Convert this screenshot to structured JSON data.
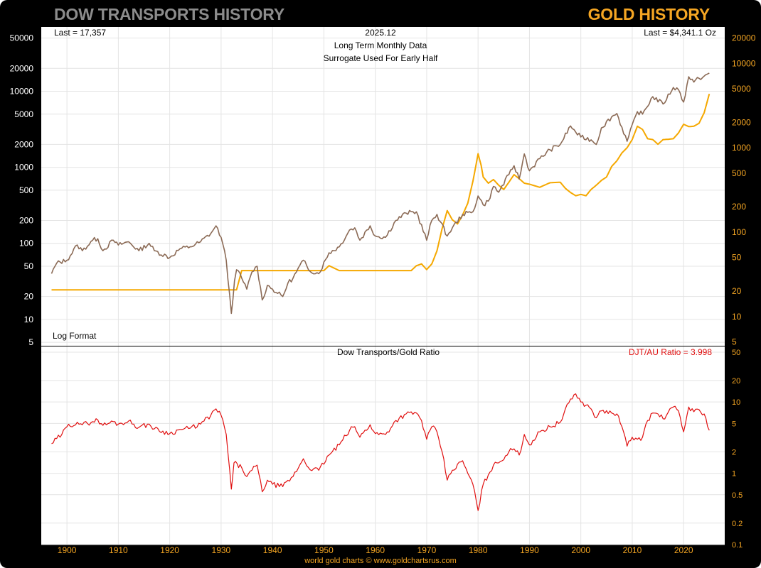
{
  "header": {
    "left_title": "DOW TRANSPORTS HISTORY",
    "right_title": "GOLD HISTORY"
  },
  "footer": {
    "credit": "world gold charts © www.goldchartsrus.com"
  },
  "colors": {
    "dow": "#8b6a55",
    "gold": "#f5a800",
    "ratio": "#e01010",
    "left_title": "#8c8c8c",
    "right_title": "#f5a623",
    "axis_label_right": "#f5a623"
  },
  "chart_data": [
    {
      "type": "line",
      "title": "2025.12",
      "subtitle": [
        "Long Term Monthly Data",
        "Surrogate Used For Early Half"
      ],
      "annotations": {
        "last_left": "Last = 17,357",
        "last_right": "Last = $4,341.1 Oz",
        "scale_note": "Log Format"
      },
      "scale": "log",
      "grid": true,
      "x_range": [
        1895,
        2028
      ],
      "y_left_range": [
        4.5,
        70000
      ],
      "y_left_ticks": [
        "50000",
        "20000",
        "10000",
        "5000",
        "2000",
        "1000",
        "500",
        "200",
        "100",
        "50",
        "20",
        "10",
        "5"
      ],
      "y_right_range": [
        4.5,
        27000
      ],
      "y_right_ticks": [
        "20000",
        "10000",
        "5000",
        "2000",
        "1000",
        "500",
        "200",
        "100",
        "50",
        "20",
        "10",
        "5"
      ],
      "series": [
        {
          "name": "Dow Transports",
          "axis": "left",
          "points": [
            [
              1897,
              40
            ],
            [
              1898,
              55
            ],
            [
              1900,
              60
            ],
            [
              1902,
              95
            ],
            [
              1903,
              80
            ],
            [
              1905,
              110
            ],
            [
              1906,
              115
            ],
            [
              1907,
              80
            ],
            [
              1909,
              110
            ],
            [
              1910,
              95
            ],
            [
              1912,
              105
            ],
            [
              1914,
              80
            ],
            [
              1916,
              100
            ],
            [
              1917,
              80
            ],
            [
              1920,
              65
            ],
            [
              1922,
              85
            ],
            [
              1924,
              90
            ],
            [
              1926,
              105
            ],
            [
              1928,
              135
            ],
            [
              1929,
              170
            ],
            [
              1930,
              120
            ],
            [
              1931,
              60
            ],
            [
              1932,
              12
            ],
            [
              1932.6,
              32
            ],
            [
              1933,
              45
            ],
            [
              1934,
              35
            ],
            [
              1935,
              25
            ],
            [
              1936,
              42
            ],
            [
              1937,
              50
            ],
            [
              1938,
              18
            ],
            [
              1939,
              28
            ],
            [
              1940,
              25
            ],
            [
              1941,
              22
            ],
            [
              1942,
              20
            ],
            [
              1943,
              30
            ],
            [
              1944,
              35
            ],
            [
              1946,
              60
            ],
            [
              1947,
              45
            ],
            [
              1949,
              40
            ],
            [
              1951,
              75
            ],
            [
              1953,
              90
            ],
            [
              1955,
              150
            ],
            [
              1956,
              160
            ],
            [
              1957,
              110
            ],
            [
              1959,
              170
            ],
            [
              1960,
              125
            ],
            [
              1962,
              120
            ],
            [
              1964,
              200
            ],
            [
              1966,
              250
            ],
            [
              1968,
              260
            ],
            [
              1970,
              110
            ],
            [
              1971,
              200
            ],
            [
              1972,
              240
            ],
            [
              1974,
              125
            ],
            [
              1975,
              160
            ],
            [
              1977,
              240
            ],
            [
              1979,
              260
            ],
            [
              1980,
              420
            ],
            [
              1981,
              320
            ],
            [
              1982,
              360
            ],
            [
              1983,
              560
            ],
            [
              1984,
              470
            ],
            [
              1986,
              800
            ],
            [
              1987,
              1050
            ],
            [
              1988,
              700
            ],
            [
              1989,
              1500
            ],
            [
              1990,
              900
            ],
            [
              1992,
              1300
            ],
            [
              1994,
              1700
            ],
            [
              1996,
              2000
            ],
            [
              1998,
              3500
            ],
            [
              1999,
              2900
            ],
            [
              2000,
              2500
            ],
            [
              2002,
              2300
            ],
            [
              2003,
              2000
            ],
            [
              2004,
              3300
            ],
            [
              2006,
              4600
            ],
            [
              2007,
              5100
            ],
            [
              2009,
              2200
            ],
            [
              2011,
              5400
            ],
            [
              2012,
              5000
            ],
            [
              2014,
              8500
            ],
            [
              2016,
              6800
            ],
            [
              2018,
              11200
            ],
            [
              2019,
              10500
            ],
            [
              2020,
              7200
            ],
            [
              2021,
              15500
            ],
            [
              2022,
              13200
            ],
            [
              2023,
              14800
            ],
            [
              2024,
              15800
            ],
            [
              2025,
              17357
            ]
          ]
        },
        {
          "name": "Gold",
          "axis": "right",
          "points": [
            [
              1897,
              20.67
            ],
            [
              1933,
              20.67
            ],
            [
              1934,
              35
            ],
            [
              1945,
              35
            ],
            [
              1950,
              35
            ],
            [
              1951,
              40
            ],
            [
              1953,
              35
            ],
            [
              1967,
              35
            ],
            [
              1968,
              40
            ],
            [
              1969,
              42
            ],
            [
              1970,
              36
            ],
            [
              1971,
              42
            ],
            [
              1972,
              60
            ],
            [
              1973,
              110
            ],
            [
              1974,
              180
            ],
            [
              1975,
              140
            ],
            [
              1976,
              125
            ],
            [
              1977,
              160
            ],
            [
              1978,
              220
            ],
            [
              1979,
              400
            ],
            [
              1980,
              850
            ],
            [
              1980.6,
              620
            ],
            [
              1981,
              450
            ],
            [
              1982,
              380
            ],
            [
              1983,
              420
            ],
            [
              1984,
              360
            ],
            [
              1985,
              320
            ],
            [
              1986,
              390
            ],
            [
              1987,
              480
            ],
            [
              1988,
              430
            ],
            [
              1989,
              380
            ],
            [
              1990,
              370
            ],
            [
              1992,
              340
            ],
            [
              1994,
              385
            ],
            [
              1996,
              390
            ],
            [
              1997,
              330
            ],
            [
              1998,
              295
            ],
            [
              1999,
              270
            ],
            [
              2000,
              280
            ],
            [
              2001,
              270
            ],
            [
              2002,
              320
            ],
            [
              2003,
              360
            ],
            [
              2004,
              410
            ],
            [
              2005,
              450
            ],
            [
              2006,
              600
            ],
            [
              2007,
              700
            ],
            [
              2008,
              870
            ],
            [
              2009,
              1000
            ],
            [
              2010,
              1250
            ],
            [
              2011,
              1800
            ],
            [
              2012,
              1650
            ],
            [
              2013,
              1280
            ],
            [
              2014,
              1250
            ],
            [
              2015,
              1100
            ],
            [
              2016,
              1250
            ],
            [
              2017,
              1260
            ],
            [
              2018,
              1280
            ],
            [
              2019,
              1500
            ],
            [
              2020,
              1900
            ],
            [
              2021,
              1780
            ],
            [
              2022,
              1800
            ],
            [
              2023,
              1950
            ],
            [
              2024,
              2600
            ],
            [
              2025,
              4341.1
            ]
          ]
        }
      ]
    },
    {
      "type": "line",
      "title": "Dow Transports/Gold Ratio",
      "annotation": "DJT/AU Ratio = 3.998",
      "scale": "log",
      "grid": true,
      "x_range": [
        1895,
        2028
      ],
      "x_ticks": [
        "1900",
        "1910",
        "1920",
        "1930",
        "1940",
        "1950",
        "1960",
        "1970",
        "1980",
        "1990",
        "2000",
        "2010",
        "2020"
      ],
      "y_range": [
        0.1,
        60
      ],
      "y_ticks": [
        "50",
        "20",
        "10",
        "5",
        "2",
        "1",
        "0.5",
        "0.2",
        "0.1"
      ],
      "series": [
        {
          "name": "DJT/AU Ratio",
          "points": [
            [
              1897,
              2.6
            ],
            [
              1899,
              3.5
            ],
            [
              1900,
              4.5
            ],
            [
              1902,
              5.2
            ],
            [
              1903,
              4.8
            ],
            [
              1905,
              5.3
            ],
            [
              1906,
              5.6
            ],
            [
              1907,
              4.7
            ],
            [
              1909,
              5.3
            ],
            [
              1910,
              4.9
            ],
            [
              1912,
              5.4
            ],
            [
              1914,
              4.4
            ],
            [
              1916,
              4.9
            ],
            [
              1917,
              4.2
            ],
            [
              1920,
              3.6
            ],
            [
              1922,
              4.1
            ],
            [
              1924,
              4.3
            ],
            [
              1926,
              4.9
            ],
            [
              1928,
              6.5
            ],
            [
              1929,
              8.0
            ],
            [
              1930,
              6.5
            ],
            [
              1931,
              3.5
            ],
            [
              1932,
              0.6
            ],
            [
              1932.5,
              1.4
            ],
            [
              1934,
              1.2
            ],
            [
              1935,
              0.9
            ],
            [
              1936,
              1.1
            ],
            [
              1937,
              1.3
            ],
            [
              1938,
              0.55
            ],
            [
              1939,
              0.8
            ],
            [
              1940,
              0.7
            ],
            [
              1942,
              0.65
            ],
            [
              1944,
              0.9
            ],
            [
              1946,
              1.6
            ],
            [
              1947,
              1.2
            ],
            [
              1949,
              1.1
            ],
            [
              1951,
              1.8
            ],
            [
              1953,
              2.5
            ],
            [
              1955,
              4.0
            ],
            [
              1956,
              4.5
            ],
            [
              1957,
              3.2
            ],
            [
              1959,
              4.8
            ],
            [
              1960,
              3.6
            ],
            [
              1962,
              3.5
            ],
            [
              1964,
              5.5
            ],
            [
              1966,
              6.8
            ],
            [
              1968,
              7.0
            ],
            [
              1969,
              5.5
            ],
            [
              1970,
              3.0
            ],
            [
              1971,
              4.5
            ],
            [
              1972,
              3.8
            ],
            [
              1973,
              2.0
            ],
            [
              1974,
              0.8
            ],
            [
              1975,
              1.1
            ],
            [
              1977,
              1.5
            ],
            [
              1978,
              1.0
            ],
            [
              1979,
              0.7
            ],
            [
              1980,
              0.3
            ],
            [
              1981,
              0.7
            ],
            [
              1982,
              0.95
            ],
            [
              1983,
              1.3
            ],
            [
              1984,
              1.4
            ],
            [
              1986,
              2.0
            ],
            [
              1987,
              2.2
            ],
            [
              1988,
              1.8
            ],
            [
              1989,
              3.5
            ],
            [
              1990,
              2.5
            ],
            [
              1992,
              3.8
            ],
            [
              1994,
              4.5
            ],
            [
              1996,
              5.2
            ],
            [
              1998,
              11.0
            ],
            [
              1999,
              13.0
            ],
            [
              2000,
              10.0
            ],
            [
              2001,
              9.0
            ],
            [
              2002,
              8.0
            ],
            [
              2003,
              6.0
            ],
            [
              2004,
              7.5
            ],
            [
              2006,
              7.0
            ],
            [
              2007,
              6.8
            ],
            [
              2008,
              4.5
            ],
            [
              2009,
              2.4
            ],
            [
              2010,
              3.2
            ],
            [
              2011,
              3.0
            ],
            [
              2012,
              3.2
            ],
            [
              2013,
              5.5
            ],
            [
              2014,
              7.0
            ],
            [
              2015,
              6.8
            ],
            [
              2016,
              5.8
            ],
            [
              2018,
              8.5
            ],
            [
              2019,
              7.5
            ],
            [
              2020,
              3.8
            ],
            [
              2021,
              8.5
            ],
            [
              2022,
              7.3
            ],
            [
              2023,
              7.8
            ],
            [
              2024,
              6.8
            ],
            [
              2025,
              3.998
            ]
          ]
        }
      ]
    }
  ]
}
